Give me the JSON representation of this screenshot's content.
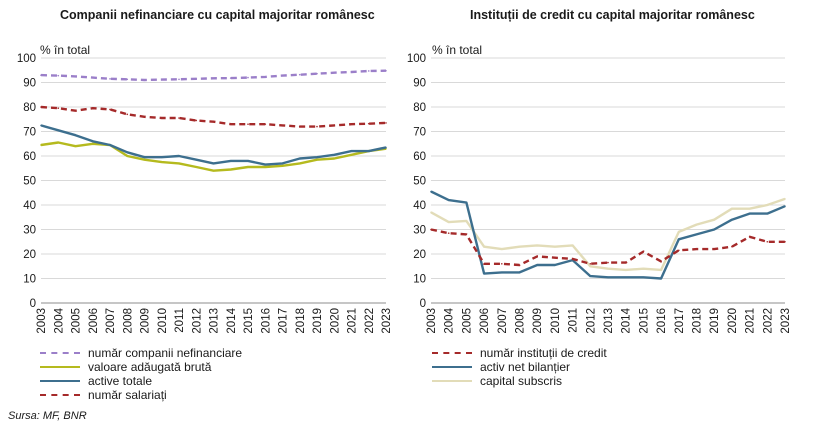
{
  "source": "Sursa: MF, BNR",
  "chart_data": [
    {
      "type": "line",
      "title": "Companii nefinanciare  cu capital  majoritar românesc",
      "ylabel": "% în total",
      "ylim": [
        0,
        100
      ],
      "yticks": [
        0,
        10,
        20,
        30,
        40,
        50,
        60,
        70,
        80,
        90,
        100
      ],
      "grid": true,
      "legend_position": "bottom",
      "x": [
        "2003",
        "2004",
        "2005",
        "2006",
        "2007",
        "2008",
        "2009",
        "2010",
        "2011",
        "2012",
        "2013",
        "2014",
        "2015",
        "2016",
        "2017",
        "2018",
        "2019",
        "2020",
        "2021",
        "2022",
        "2023"
      ],
      "series": [
        {
          "name": "număr companii nefinanciare",
          "color": "#9b7fc9",
          "dash": "dashed",
          "values": [
            93,
            92.8,
            92.5,
            92,
            91.5,
            91.3,
            91,
            91.2,
            91.3,
            91.5,
            91.7,
            91.8,
            92,
            92.3,
            92.8,
            93.2,
            93.6,
            94,
            94.3,
            94.7,
            94.8
          ]
        },
        {
          "name": "valoare adăugată brută",
          "color": "#b5ba1e",
          "dash": "solid",
          "values": [
            64.5,
            65.5,
            64,
            65,
            64.5,
            60,
            58.5,
            57.5,
            57,
            55.5,
            54,
            54.5,
            55.5,
            55.5,
            56,
            57,
            58.5,
            59,
            60.5,
            62,
            63
          ]
        },
        {
          "name": "active totale",
          "color": "#3d6f8e",
          "dash": "solid",
          "values": [
            72.5,
            70.5,
            68.5,
            66,
            64.5,
            61.5,
            59.5,
            59.5,
            60,
            58.5,
            57,
            58,
            58,
            56.5,
            57,
            59,
            59.5,
            60.5,
            62,
            62,
            63.5
          ]
        },
        {
          "name": "număr salariați",
          "color": "#a52a2a",
          "dash": "dashed",
          "values": [
            80,
            79.5,
            78.5,
            79.5,
            79,
            77,
            76,
            75.5,
            75.5,
            74.5,
            74,
            73,
            73,
            73,
            72.5,
            72,
            72,
            72.5,
            73,
            73.2,
            73.5
          ]
        }
      ],
      "legend_order": [
        "număr companii nefinanciare",
        "valoare adăugată brută",
        "active totale",
        "număr salariați"
      ]
    },
    {
      "type": "line",
      "title": "Instituții de credit cu capital majoritar românesc",
      "ylabel": "% în total",
      "ylim": [
        0,
        100
      ],
      "yticks": [
        0,
        10,
        20,
        30,
        40,
        50,
        60,
        70,
        80,
        90,
        100
      ],
      "grid": true,
      "legend_position": "bottom",
      "x": [
        "2003",
        "2004",
        "2005",
        "2006",
        "2007",
        "2008",
        "2009",
        "2010",
        "2011",
        "2012",
        "2013",
        "2014",
        "2015",
        "2016",
        "2017",
        "2018",
        "2019",
        "2020",
        "2021",
        "2022",
        "2023"
      ],
      "series": [
        {
          "name": "capital subscris",
          "color": "#e2dcb8",
          "dash": "solid",
          "values": [
            37,
            33,
            33.5,
            23,
            22,
            23,
            23.5,
            23,
            23.5,
            15,
            14,
            13.5,
            14,
            13.5,
            29,
            32,
            34,
            38.5,
            38.5,
            40,
            42.5
          ]
        },
        {
          "name": "activ net bilanțier",
          "color": "#3d6f8e",
          "dash": "solid",
          "values": [
            45.5,
            42,
            41,
            12,
            12.5,
            12.5,
            15.5,
            15.5,
            17.5,
            11,
            10.5,
            10.5,
            10.5,
            10,
            26,
            28,
            30,
            34,
            36.5,
            36.5,
            39.5
          ]
        },
        {
          "name": "număr instituții de credit",
          "color": "#a52a2a",
          "dash": "dashed",
          "values": [
            30,
            28.5,
            28,
            16,
            16,
            15.5,
            19,
            18.5,
            18,
            16,
            16.5,
            16.5,
            21,
            17,
            21.5,
            22,
            22,
            23,
            27,
            25,
            25
          ]
        }
      ],
      "legend_order": [
        "număr instituții de credit",
        "activ net bilanțier",
        "capital subscris"
      ]
    }
  ]
}
